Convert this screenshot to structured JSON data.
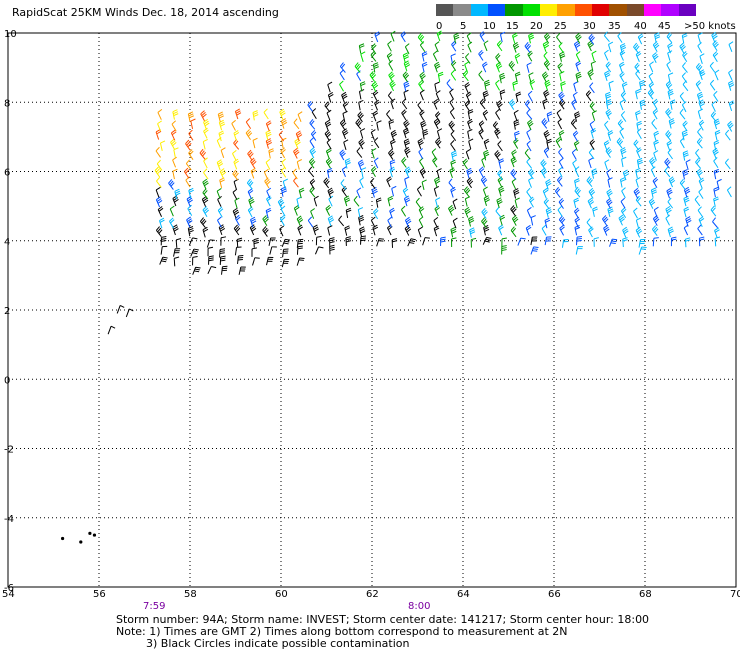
{
  "title": "RapidScat 25KM Winds Dec. 18, 2014 ascending",
  "legend": {
    "labels": [
      "0",
      "5",
      "10",
      "15",
      "20",
      "25",
      "30",
      "35",
      "40",
      "45",
      ">50 knots"
    ],
    "colors": [
      "#555555",
      "#8a8a8a",
      "#00b8ff",
      "#0050ff",
      "#009600",
      "#00e000",
      "#ffee00",
      "#ffa000",
      "#ff5000",
      "#e00000",
      "#a05000",
      "#7a4a2a",
      "#ff00ff",
      "#b000ff",
      "#6a00c0"
    ]
  },
  "axes": {
    "x_ticks": [
      "54",
      "56",
      "58",
      "60",
      "62",
      "64",
      "66",
      "68",
      "70"
    ],
    "y_ticks": [
      "10",
      "8",
      "6",
      "4",
      "2",
      "0",
      "-2",
      "-4",
      "-6"
    ]
  },
  "times": {
    "left": "7:59",
    "right": "8:00"
  },
  "footer": {
    "line1": "Storm number: 94A;  Storm name: INVEST;  Storm center date: 141217;  Storm center hour: 18:00",
    "line2": "Note: 1) Times are GMT  2) Times along bottom correspond to measurement at 2N",
    "line3": "3) Black Circles indicate possible contamination"
  },
  "map": {
    "lon_range": [
      54,
      70
    ],
    "lat_range": [
      -6,
      10
    ],
    "contamination_circles": [
      [
        55.2,
        -4.6
      ],
      [
        55.8,
        -4.45
      ],
      [
        55.9,
        -4.5
      ],
      [
        55.6,
        -4.7
      ]
    ]
  }
}
